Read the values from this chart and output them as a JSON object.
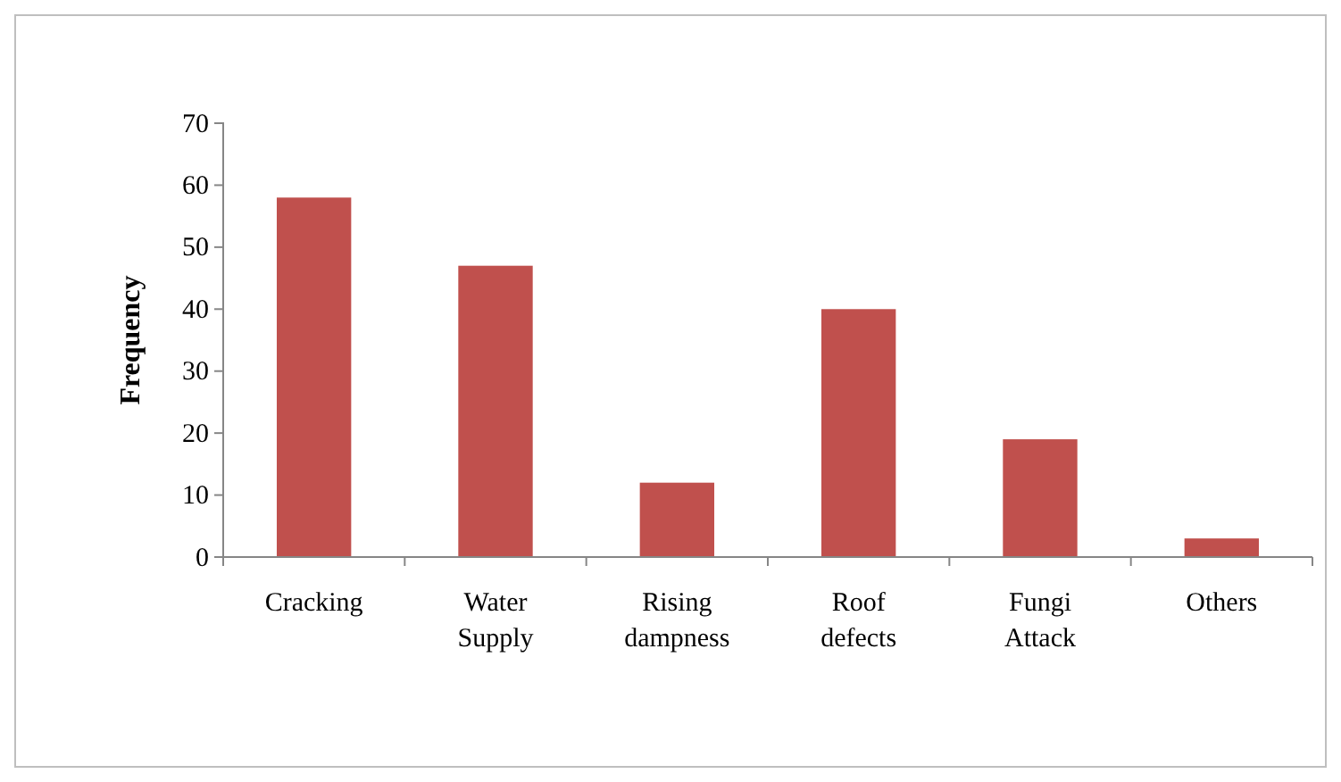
{
  "chart_data": {
    "type": "bar",
    "ylabel": "Frequency",
    "categories": [
      "Cracking",
      "Water Supply",
      "Rising dampness",
      "Roof defects",
      "Fungi Attack",
      "Others"
    ],
    "values": [
      58,
      47,
      12,
      40,
      19,
      3
    ],
    "color": "#c0504d",
    "ylim": [
      0,
      70
    ],
    "yticks": [
      0,
      10,
      20,
      30,
      40,
      50,
      60,
      70
    ],
    "grid": false
  }
}
